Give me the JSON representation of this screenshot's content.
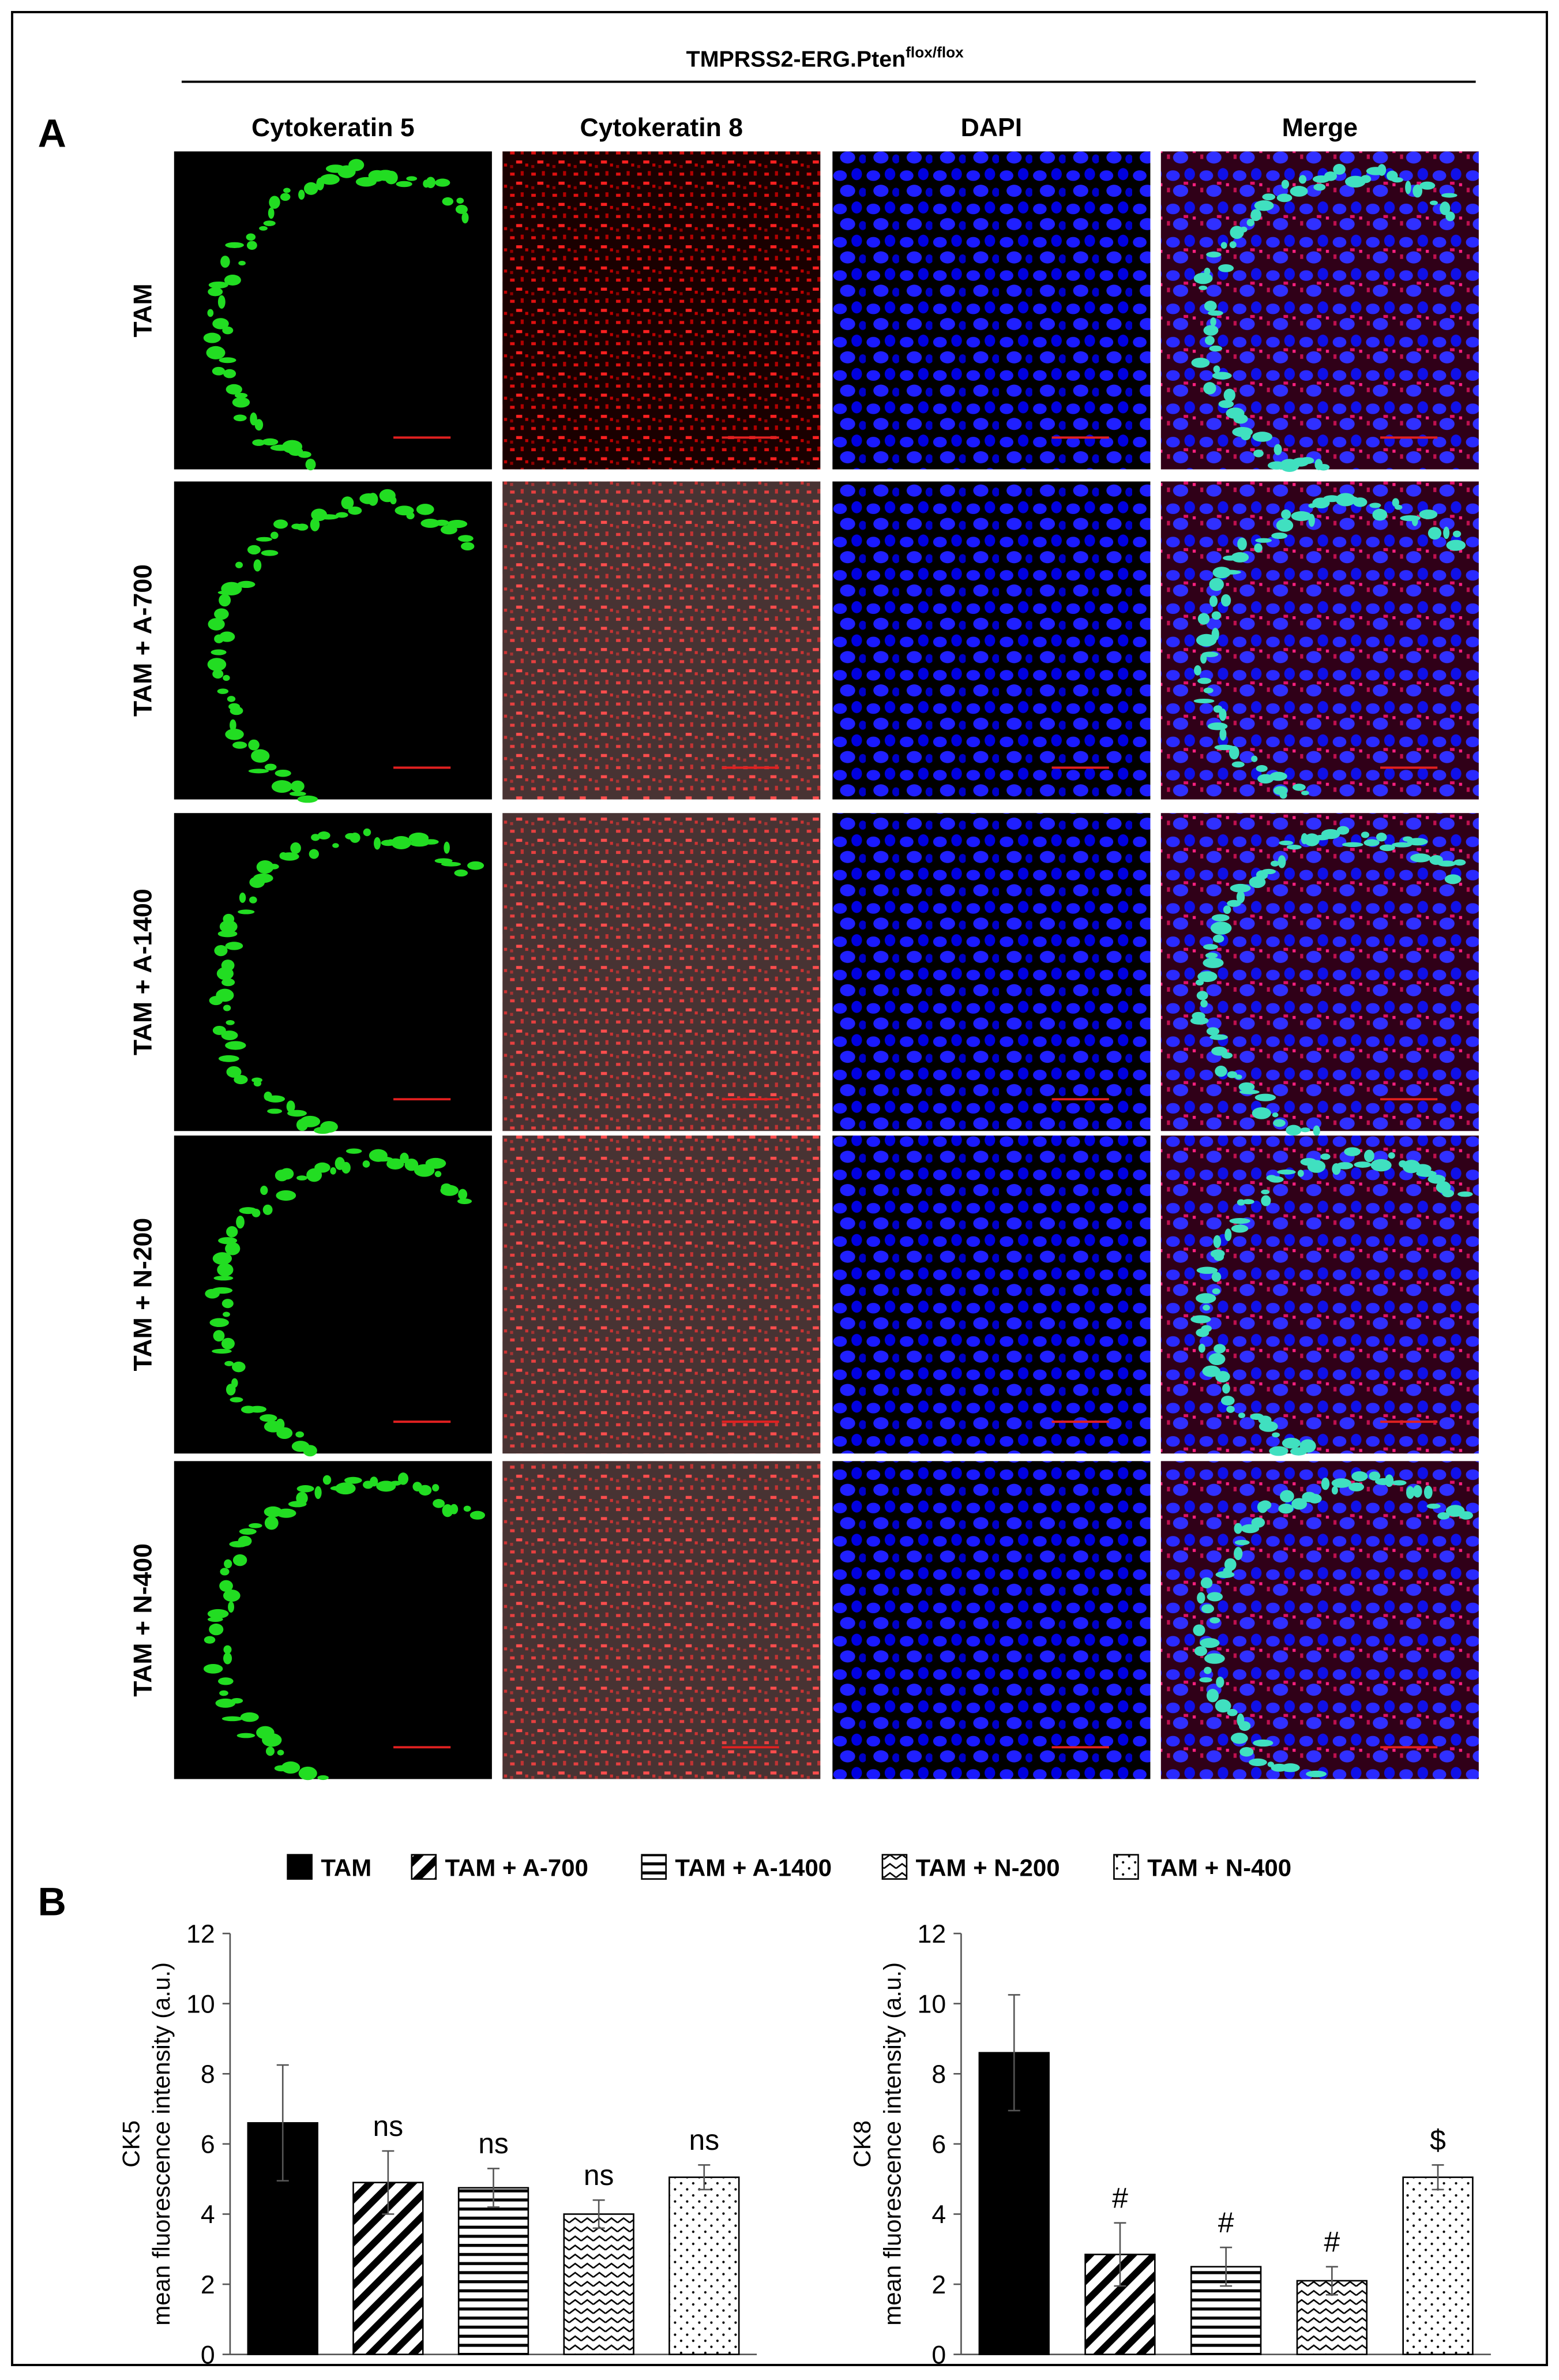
{
  "header": {
    "title": "TMPRSS2-ERG.Pten",
    "superscript": "flox/flox"
  },
  "panel_labels": [
    "A",
    "B"
  ],
  "columns": [
    "Cytokeratin 5",
    "Cytokeratin 8",
    "DAPI",
    "Merge"
  ],
  "rows": [
    "TAM",
    "TAM + A-700",
    "TAM + A-1400",
    "TAM + N-200",
    "TAM + N-400"
  ],
  "legend": {
    "entries": [
      "TAM",
      "TAM + A-700",
      "TAM + A-1400",
      "TAM + N-200",
      "TAM + N-400"
    ],
    "patterns": [
      "solid",
      "diagonal",
      "horizontal",
      "zigzag",
      "dots"
    ]
  },
  "chart_data": [
    {
      "type": "bar",
      "y_label": [
        "CK5",
        "mean fluorescence intensity (a.u.)"
      ],
      "values": [
        6.6,
        4.9,
        4.75,
        4.0,
        5.05
      ],
      "errors": [
        1.65,
        0.9,
        0.55,
        0.4,
        0.35
      ],
      "annotations": [
        null,
        "ns",
        "ns",
        "ns",
        "ns"
      ],
      "ylim": [
        0,
        12
      ],
      "yticks": [
        0,
        2,
        4,
        6,
        8,
        10,
        12
      ]
    },
    {
      "type": "bar",
      "y_label": [
        "CK8",
        "mean fluorescence intensity (a.u.)"
      ],
      "values": [
        8.6,
        2.85,
        2.5,
        2.1,
        5.05
      ],
      "errors": [
        1.65,
        0.9,
        0.55,
        0.4,
        0.35
      ],
      "annotations": [
        null,
        "#",
        "#",
        "#",
        "$"
      ],
      "ylim": [
        0,
        12
      ],
      "yticks": [
        0,
        2,
        4,
        6,
        8,
        10,
        12
      ]
    }
  ]
}
